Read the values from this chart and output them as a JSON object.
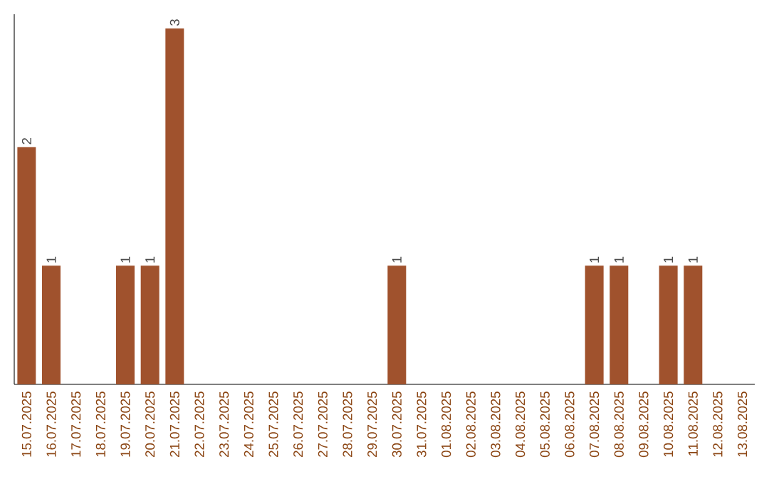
{
  "chart_data": {
    "type": "bar",
    "color": "#a0522d",
    "categories": [
      "15.07.2025",
      "16.07.2025",
      "17.07.2025",
      "18.07.2025",
      "19.07.2025",
      "20.07.2025",
      "21.07.2025",
      "22.07.2025",
      "23.07.2025",
      "24.07.2025",
      "25.07.2025",
      "26.07.2025",
      "27.07.2025",
      "28.07.2025",
      "29.07.2025",
      "30.07.2025",
      "31.07.2025",
      "01.08.2025",
      "02.08.2025",
      "03.08.2025",
      "04.08.2025",
      "05.08.2025",
      "06.08.2025",
      "07.08.2025",
      "08.08.2025",
      "09.08.2025",
      "10.08.2025",
      "11.08.2025",
      "12.08.2025",
      "13.08.2025"
    ],
    "values": [
      2,
      1,
      0,
      0,
      1,
      1,
      3,
      0,
      0,
      0,
      0,
      0,
      0,
      0,
      0,
      1,
      0,
      0,
      0,
      0,
      0,
      0,
      0,
      1,
      1,
      0,
      1,
      1,
      0,
      0
    ],
    "value_labels": [
      "2",
      "1",
      null,
      null,
      "1",
      "1",
      "3",
      null,
      null,
      null,
      null,
      null,
      null,
      null,
      null,
      "1",
      null,
      null,
      null,
      null,
      null,
      null,
      null,
      "1",
      "1",
      null,
      "1",
      "1",
      null,
      null
    ],
    "ylim": [
      0,
      3
    ],
    "tick_labels": "x"
  }
}
